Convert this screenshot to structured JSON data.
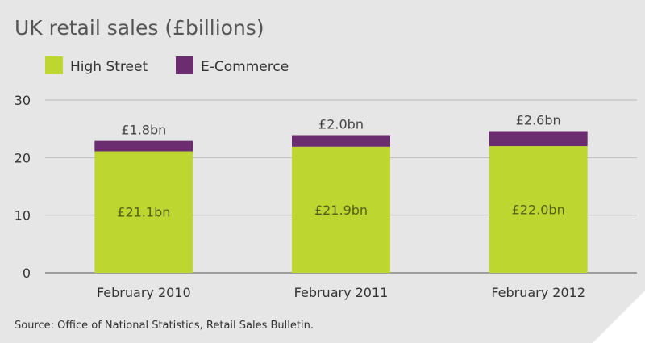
{
  "chart_data": {
    "type": "bar",
    "stacked": true,
    "title": "UK retail sales (£billions)",
    "categories": [
      "February 2010",
      "February 2011",
      "February 2012"
    ],
    "series": [
      {
        "name": "High Street",
        "color": "#bed630",
        "values": [
          21.1,
          21.9,
          22.0
        ],
        "labels": [
          "£21.1bn",
          "£21.9bn",
          "£22.0bn"
        ]
      },
      {
        "name": "E-Commerce",
        "color": "#6b2c70",
        "values": [
          1.8,
          2.0,
          2.6
        ],
        "labels": [
          "£1.8bn",
          "£2.0bn",
          "£2.6bn"
        ]
      }
    ],
    "yticks": [
      "0",
      "10",
      "20",
      "30"
    ],
    "ylim": [
      0,
      30
    ],
    "grid": true,
    "legend_position": "top-left",
    "source": "Source: Office of National Statistics, Retail Sales Bulletin."
  }
}
